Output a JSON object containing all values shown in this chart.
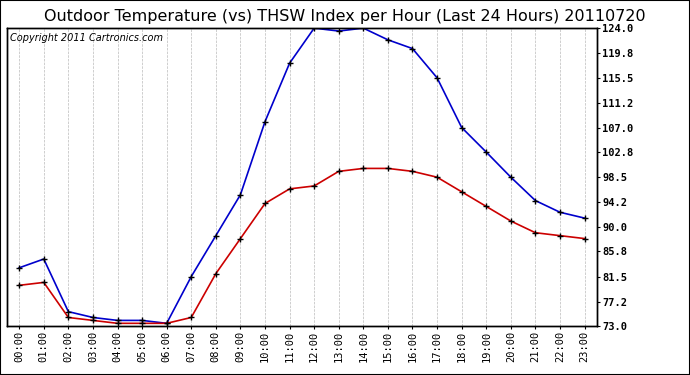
{
  "title": "Outdoor Temperature (vs) THSW Index per Hour (Last 24 Hours) 20110720",
  "copyright": "Copyright 2011 Cartronics.com",
  "hours": [
    "00:00",
    "01:00",
    "02:00",
    "03:00",
    "04:00",
    "05:00",
    "06:00",
    "07:00",
    "08:00",
    "09:00",
    "10:00",
    "11:00",
    "12:00",
    "13:00",
    "14:00",
    "15:00",
    "16:00",
    "17:00",
    "18:00",
    "19:00",
    "20:00",
    "21:00",
    "22:00",
    "23:00"
  ],
  "thsw": [
    83.0,
    84.5,
    75.5,
    74.5,
    74.0,
    74.0,
    73.5,
    81.5,
    88.5,
    95.5,
    108.0,
    118.0,
    124.0,
    123.5,
    124.0,
    122.0,
    120.5,
    115.5,
    107.0,
    102.8,
    98.5,
    94.5,
    92.5,
    91.5
  ],
  "temp": [
    80.0,
    80.5,
    74.5,
    74.0,
    73.5,
    73.5,
    73.5,
    74.5,
    82.0,
    88.0,
    94.0,
    96.5,
    97.0,
    99.5,
    100.0,
    100.0,
    99.5,
    98.5,
    96.0,
    93.5,
    91.0,
    89.0,
    88.5,
    88.0
  ],
  "thsw_color": "#0000cc",
  "temp_color": "#cc0000",
  "ylim": [
    73.0,
    124.0
  ],
  "yticks_right": [
    73.0,
    77.2,
    81.5,
    85.8,
    90.0,
    94.2,
    98.5,
    102.8,
    107.0,
    111.2,
    115.5,
    119.8,
    124.0
  ],
  "bg_color": "#ffffff",
  "grid_color": "#bbbbbb",
  "title_fontsize": 11.5,
  "copyright_fontsize": 7,
  "tick_fontsize": 7.5
}
